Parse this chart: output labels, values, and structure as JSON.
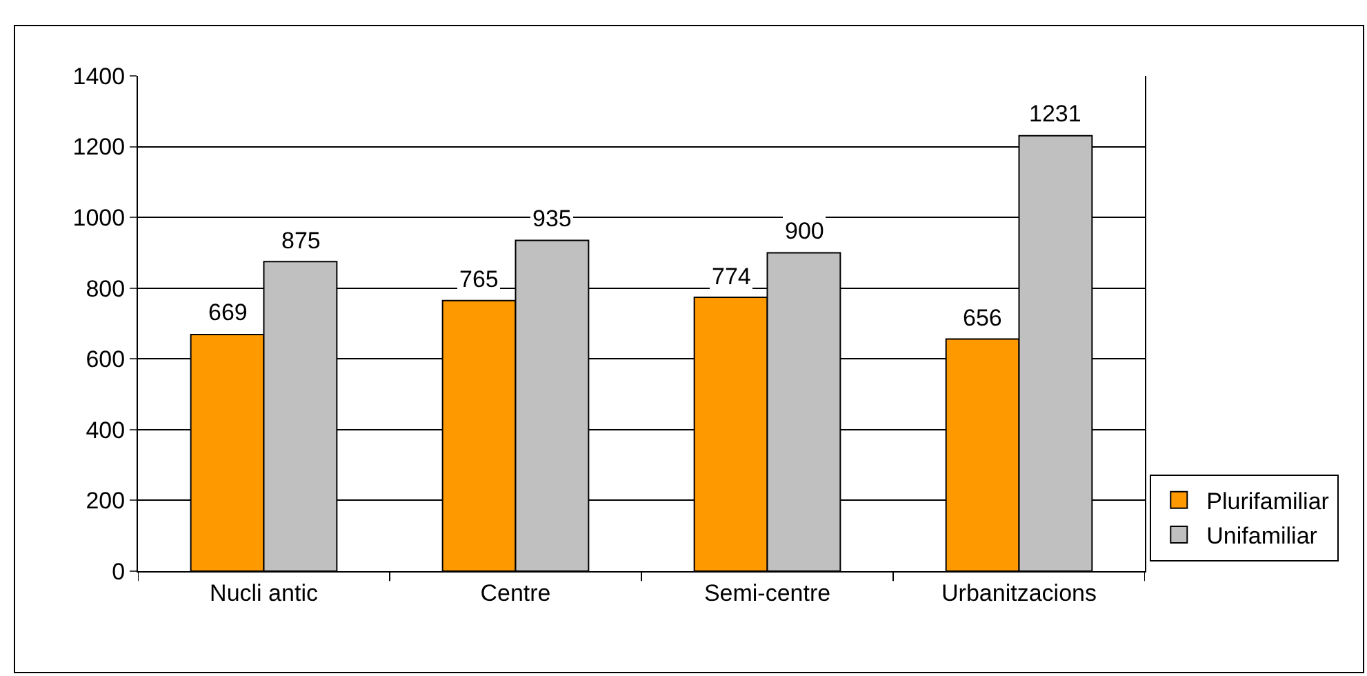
{
  "chart_data": {
    "type": "bar",
    "categories": [
      "Nucli antic",
      "Centre",
      "Semi-centre",
      "Urbanitzacions"
    ],
    "series": [
      {
        "name": "Plurifamiliar",
        "color": "#ff9900",
        "values": [
          669,
          765,
          774,
          656
        ]
      },
      {
        "name": "Unifamiliar",
        "color": "#c0c0c0",
        "values": [
          875,
          935,
          900,
          1231
        ]
      }
    ],
    "ylim": [
      0,
      1400
    ],
    "yticks": [
      0,
      200,
      400,
      600,
      800,
      1000,
      1200,
      1400
    ],
    "grid": "y",
    "legend": "right",
    "data_labels": true
  }
}
